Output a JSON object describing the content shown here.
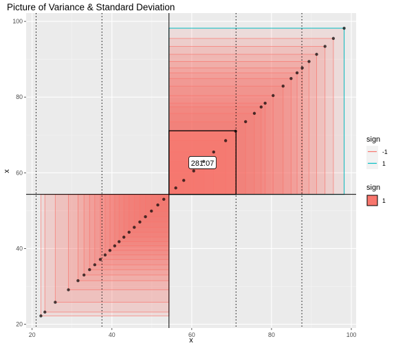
{
  "chart_data": {
    "type": "scatter",
    "title": "Picture of Variance & Standard Deviation",
    "xlabel": "x",
    "ylabel": "x",
    "xlim": [
      18.5,
      101.2
    ],
    "ylim": [
      19.0,
      102.2
    ],
    "x_ticks": [
      20,
      40,
      60,
      80,
      100
    ],
    "y_ticks": [
      20,
      40,
      60,
      80,
      100
    ],
    "grid": true,
    "background": "#EBEBEB",
    "mean": 54.3,
    "sd_lines": [
      21.0,
      37.5,
      71.1,
      87.6
    ],
    "variance_label": "281.07",
    "variance_square": {
      "from": 54.3,
      "to": 71.1
    },
    "points": [
      22.2,
      23.2,
      25.8,
      29.1,
      31.5,
      33.0,
      34.4,
      35.7,
      37.1,
      38.3,
      39.5,
      40.7,
      41.8,
      43.0,
      44.3,
      45.6,
      47.0,
      48.4,
      49.9,
      51.5,
      53.0,
      56.0,
      58.0,
      60.5,
      63.0,
      65.5,
      68.5,
      71.0,
      73.5,
      75.7,
      77.4,
      78.4,
      80.4,
      82.9,
      84.9,
      86.4,
      87.7,
      89.4,
      91.3,
      93.4,
      95.5,
      98.2
    ],
    "colors": {
      "neg": "#F8766D",
      "pos": "#00BFC4",
      "fill": "#F8766D"
    },
    "legend": {
      "position": "right",
      "color_title": "sign",
      "color_items": [
        "-1",
        "1"
      ],
      "fill_title": "sign",
      "fill_items": [
        "1"
      ]
    }
  }
}
